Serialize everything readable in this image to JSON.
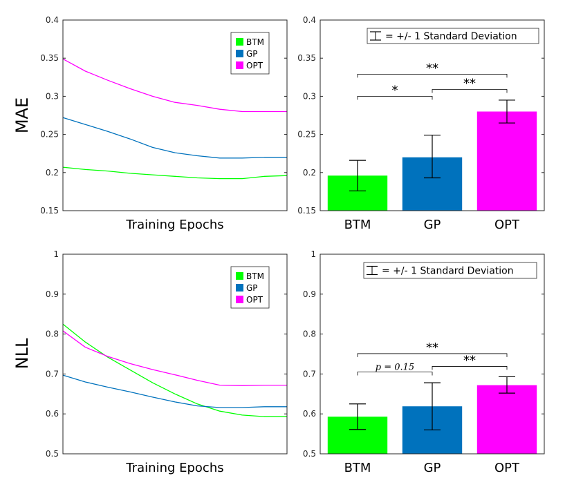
{
  "chart_data": [
    {
      "id": "mae_line",
      "type": "line",
      "ylim": [
        0.15,
        0.4
      ],
      "yticks": [
        0.15,
        0.2,
        0.25,
        0.3,
        0.35,
        0.4
      ],
      "ytick_labels": [
        "0.15",
        "0.2",
        "0.25",
        "0.3",
        "0.35",
        "0.4"
      ],
      "xlabel": "Training Epochs",
      "ylabel": "MAE",
      "x": [
        0,
        1,
        2,
        3,
        4,
        5,
        6,
        7,
        8,
        9,
        10
      ],
      "series": [
        {
          "name": "BTM",
          "color": "#00ff00",
          "values": [
            0.207,
            0.204,
            0.202,
            0.199,
            0.197,
            0.195,
            0.193,
            0.192,
            0.192,
            0.195,
            0.196
          ]
        },
        {
          "name": "GP",
          "color": "#0072bd",
          "values": [
            0.272,
            0.263,
            0.254,
            0.244,
            0.233,
            0.226,
            0.222,
            0.219,
            0.219,
            0.22,
            0.22
          ]
        },
        {
          "name": "OPT",
          "color": "#ff00ff",
          "values": [
            0.349,
            0.333,
            0.321,
            0.31,
            0.3,
            0.292,
            0.288,
            0.283,
            0.28,
            0.28,
            0.28
          ]
        }
      ]
    },
    {
      "id": "mae_bar",
      "type": "bar",
      "ylim": [
        0.15,
        0.4
      ],
      "yticks": [
        0.15,
        0.2,
        0.25,
        0.3,
        0.35,
        0.4
      ],
      "ytick_labels": [
        "0.15",
        "0.2",
        "0.25",
        "0.3",
        "0.35",
        "0.4"
      ],
      "categories": [
        "BTM",
        "GP",
        "OPT"
      ],
      "values": [
        0.196,
        0.22,
        0.28
      ],
      "err_low": [
        0.176,
        0.193,
        0.265
      ],
      "err_high": [
        0.216,
        0.249,
        0.295
      ],
      "colors": [
        "#00ff00",
        "#0072bd",
        "#ff00ff"
      ],
      "sd_legend": "= +/- 1 Standard Deviation",
      "significance": [
        {
          "from": 0,
          "to": 1,
          "label": "*",
          "italic": false,
          "level": 0.3
        },
        {
          "from": 1,
          "to": 2,
          "label": "**",
          "italic": false,
          "level": 0.309
        },
        {
          "from": 0,
          "to": 2,
          "label": "**",
          "italic": false,
          "level": 0.329
        }
      ]
    },
    {
      "id": "nll_line",
      "type": "line",
      "ylim": [
        0.5,
        1.0
      ],
      "yticks": [
        0.5,
        0.6,
        0.7,
        0.8,
        0.9,
        1.0
      ],
      "ytick_labels": [
        "0.5",
        "0.6",
        "0.7",
        "0.8",
        "0.9",
        "1"
      ],
      "xlabel": "Training Epochs",
      "ylabel": "NLL",
      "x": [
        0,
        1,
        2,
        3,
        4,
        5,
        6,
        7,
        8,
        9,
        10
      ],
      "series": [
        {
          "name": "BTM",
          "color": "#00ff00",
          "values": [
            0.825,
            0.78,
            0.742,
            0.71,
            0.678,
            0.65,
            0.625,
            0.607,
            0.597,
            0.593,
            0.593
          ]
        },
        {
          "name": "GP",
          "color": "#0072bd",
          "values": [
            0.697,
            0.68,
            0.667,
            0.655,
            0.642,
            0.63,
            0.62,
            0.616,
            0.616,
            0.618,
            0.618
          ]
        },
        {
          "name": "OPT",
          "color": "#ff00ff",
          "values": [
            0.808,
            0.767,
            0.744,
            0.726,
            0.711,
            0.698,
            0.684,
            0.672,
            0.671,
            0.672,
            0.672
          ]
        }
      ]
    },
    {
      "id": "nll_bar",
      "type": "bar",
      "ylim": [
        0.5,
        1.0
      ],
      "yticks": [
        0.5,
        0.6,
        0.7,
        0.8,
        0.9,
        1.0
      ],
      "ytick_labels": [
        "0.5",
        "0.6",
        "0.7",
        "0.8",
        "0.9",
        "1"
      ],
      "categories": [
        "BTM",
        "GP",
        "OPT"
      ],
      "values": [
        0.593,
        0.619,
        0.672
      ],
      "err_low": [
        0.561,
        0.56,
        0.652
      ],
      "err_high": [
        0.625,
        0.678,
        0.693
      ],
      "colors": [
        "#00ff00",
        "#0072bd",
        "#ff00ff"
      ],
      "sd_legend": "= +/- 1 Standard Deviation",
      "significance": [
        {
          "from": 0,
          "to": 1,
          "label": "p = 0.15",
          "italic": true,
          "level": 0.705
        },
        {
          "from": 1,
          "to": 2,
          "label": "**",
          "italic": false,
          "level": 0.719
        },
        {
          "from": 0,
          "to": 2,
          "label": "**",
          "italic": false,
          "level": 0.751
        }
      ]
    }
  ]
}
